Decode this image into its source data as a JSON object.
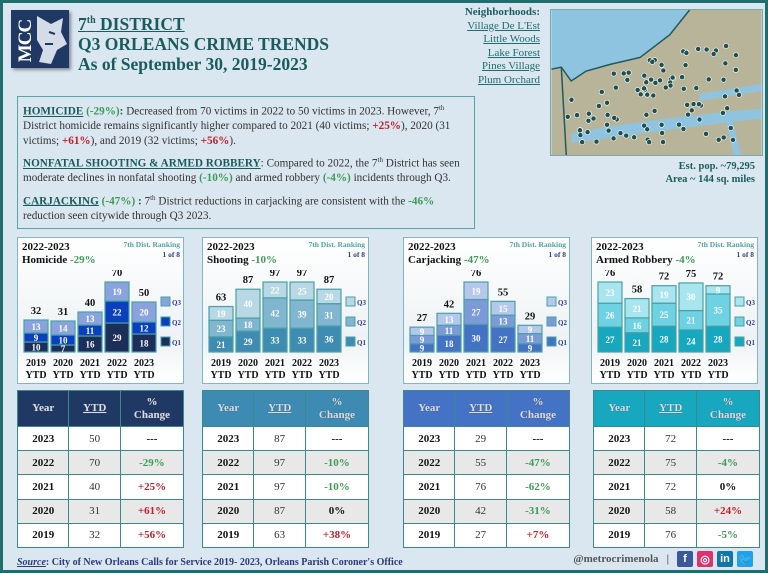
{
  "header": {
    "logo_text": "MCC",
    "title_line1_pre": "7",
    "title_line1_sup": "th",
    "title_line1_post": " DISTRICT",
    "title_line2": "Q3 ORLEANS CRIME TRENDS",
    "title_line3": "As of September 30, 2019-2023"
  },
  "neighborhoods": {
    "label": "Neighborhoods:",
    "items": [
      "Village De L'Est",
      "Little Woods",
      "Lake Forest",
      "Pines Village",
      "Plum Orchard"
    ]
  },
  "district_info": {
    "population": "Est. pop. ~79,295",
    "area": "Area ~ 144 sq. miles"
  },
  "summary": {
    "homicide": {
      "kw": "HOMICIDE",
      "pct": " (-29%)",
      "colon": ":",
      "t1": " Decreased from 70 victims in 2022 to 50 victims in 2023. However, 7",
      "sup": "th",
      "t2": " District homicide remains significantly higher compared to 2021 (40 victims; ",
      "c1": "+25%",
      "t3": "), 2020 (31 victims; ",
      "c2": "+61%",
      "t4": "), and 2019 (32 victims; ",
      "c3": "+56%",
      "t5": ")."
    },
    "shooting_robbery": {
      "kw": "NONFATAL SHOOTING & ARMED ROBBERY",
      "t1": ": Compared to 2022, the 7",
      "sup": "th",
      "t2": " District has seen moderate declines in nonfatal shooting ",
      "c1": "(-10%)",
      "t3": " and armed robbery ",
      "c2": "(-4%)",
      "t4": " incidents through Q3."
    },
    "carjacking": {
      "kw": "CARJACKING",
      "pct": " (-47%)",
      "colon": " :",
      "t1": " 7",
      "sup": "th",
      "t2": " District reductions in carjacking are consistent with the ",
      "c1": "-46%",
      "t3": " reduction seen citywide through Q3 2023."
    }
  },
  "colors": {
    "teal": "#1a5c5c",
    "green": "#3f9a57",
    "red": "#c0202a"
  },
  "chart_data": [
    {
      "type": "bar",
      "stacked": true,
      "period": "2022-2023",
      "title": "Homicide",
      "change": "-29%",
      "ranking_label": "7th Dist. Ranking",
      "ranking": "1 of 8",
      "categories": [
        "2019 YTD",
        "2020 YTD",
        "2021 YTD",
        "2022 YTD",
        "2023 YTD"
      ],
      "totals": [
        32,
        31,
        40,
        70,
        50
      ],
      "series": [
        {
          "name": "Q1",
          "values": [
            10,
            7,
            16,
            29,
            18
          ],
          "color": "#1c2e5a"
        },
        {
          "name": "Q2",
          "values": [
            9,
            10,
            11,
            22,
            12
          ],
          "color": "#0a3fbe"
        },
        {
          "name": "Q3",
          "values": [
            13,
            14,
            13,
            19,
            20
          ],
          "color": "#8aa3df"
        }
      ],
      "header_color": "#1f3864"
    },
    {
      "type": "bar",
      "stacked": true,
      "period": "2022-2023",
      "title": "Shooting",
      "change": "-10%",
      "ranking_label": "7th Dist. Ranking",
      "ranking": "1 of 8",
      "categories": [
        "2019 YTD",
        "2020 YTD",
        "2021 YTD",
        "2022 YTD",
        "2023 YTD"
      ],
      "totals": [
        63,
        87,
        97,
        97,
        87
      ],
      "series": [
        {
          "name": "Q1",
          "values": [
            21,
            29,
            33,
            33,
            36
          ],
          "color": "#3f8cb3"
        },
        {
          "name": "Q2",
          "values": [
            23,
            18,
            42,
            39,
            31
          ],
          "color": "#80b6cf"
        },
        {
          "name": "Q3",
          "values": [
            19,
            40,
            22,
            25,
            20
          ],
          "color": "#b8d8e5"
        }
      ],
      "header_color": "#3d8bb3"
    },
    {
      "type": "bar",
      "stacked": true,
      "period": "2022-2023",
      "title": "Carjacking",
      "change": "-47%",
      "ranking_label": "7th Dist. Ranking",
      "ranking": "1 of 8",
      "categories": [
        "2019 YTD",
        "2020 YTD",
        "2021 YTD",
        "2022 YTD",
        "2023 YTD"
      ],
      "totals": [
        27,
        42,
        76,
        55,
        29
      ],
      "series": [
        {
          "name": "Q1",
          "values": [
            9,
            18,
            30,
            27,
            9
          ],
          "color": "#4472c4"
        },
        {
          "name": "Q2",
          "values": [
            9,
            11,
            27,
            13,
            11
          ],
          "color": "#7c9ad8"
        },
        {
          "name": "Q3",
          "values": [
            9,
            13,
            19,
            15,
            9
          ],
          "color": "#b6c7ec"
        }
      ],
      "header_color": "#4472c4"
    },
    {
      "type": "bar",
      "stacked": true,
      "period": "2022-2023",
      "title": "Armed Robbery",
      "change": "-4%",
      "ranking_label": "7th Dist. Ranking",
      "ranking": "1 of 8",
      "categories": [
        "2019 YTD",
        "2020 YTD",
        "2021 YTD",
        "2022 YTD",
        "2023 YTD"
      ],
      "totals": [
        76,
        58,
        72,
        75,
        72
      ],
      "series": [
        {
          "name": "Q1",
          "values": [
            27,
            21,
            28,
            24,
            28
          ],
          "color": "#17a7bf"
        },
        {
          "name": "Q2",
          "values": [
            26,
            16,
            25,
            21,
            35
          ],
          "color": "#6fd2e2"
        },
        {
          "name": "Q3",
          "values": [
            23,
            21,
            19,
            30,
            9
          ],
          "color": "#a8e5ef"
        }
      ],
      "header_color": "#17a8c0"
    }
  ],
  "tables": {
    "headers": {
      "year": "Year",
      "ytd": "YTD",
      "pct1": "%",
      "pct2": "Change"
    },
    "data": [
      {
        "rows": [
          [
            "2023",
            "50",
            "---"
          ],
          [
            "2022",
            "70",
            "-29%"
          ],
          [
            "2021",
            "40",
            "+25%"
          ],
          [
            "2020",
            "31",
            "+61%"
          ],
          [
            "2019",
            "32",
            "+56%"
          ]
        ]
      },
      {
        "rows": [
          [
            "2023",
            "87",
            "---"
          ],
          [
            "2022",
            "97",
            "-10%"
          ],
          [
            "2021",
            "97",
            "-10%"
          ],
          [
            "2020",
            "87",
            "0%"
          ],
          [
            "2019",
            "63",
            "+38%"
          ]
        ]
      },
      {
        "rows": [
          [
            "2023",
            "29",
            "---"
          ],
          [
            "2022",
            "55",
            "-47%"
          ],
          [
            "2021",
            "76",
            "-62%"
          ],
          [
            "2020",
            "42",
            "-31%"
          ],
          [
            "2019",
            "27",
            "+7%"
          ]
        ]
      },
      {
        "rows": [
          [
            "2023",
            "72",
            "---"
          ],
          [
            "2022",
            "75",
            "-4%"
          ],
          [
            "2021",
            "72",
            "0%"
          ],
          [
            "2020",
            "58",
            "+24%"
          ],
          [
            "2019",
            "76",
            "-5%"
          ]
        ]
      }
    ]
  },
  "footer": {
    "source_label": "Source",
    "source_text": ": City of New Orleans Calls for Service 2019- 2023, Orleans Parish Coroner's Office",
    "handle": "@metrocrimenola",
    "separator": "|",
    "social": [
      {
        "icon": "facebook-icon",
        "glyph": "f",
        "color": "#3b5998"
      },
      {
        "icon": "instagram-icon",
        "glyph": "◎",
        "color": "#e1306c"
      },
      {
        "icon": "linkedin-icon",
        "glyph": "in",
        "color": "#0e76a8"
      },
      {
        "icon": "twitter-icon",
        "glyph": "🐦",
        "color": "#1da1f2"
      }
    ]
  }
}
